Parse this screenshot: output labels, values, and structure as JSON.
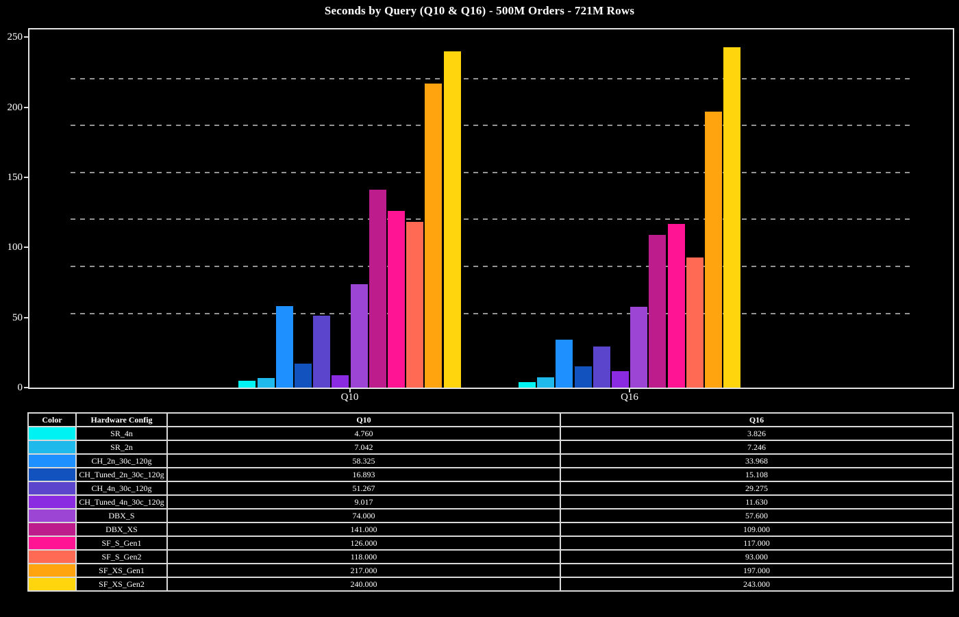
{
  "chart_data": {
    "type": "bar",
    "title": "Seconds by Query (Q10 & Q16) - 500M Orders - 721M Rows",
    "categories": [
      "Q10",
      "Q16"
    ],
    "series": [
      {
        "name": "SR_4n",
        "color": "#00F2F2",
        "values": [
          4.76,
          3.826
        ]
      },
      {
        "name": "SR_2n",
        "color": "#1FB9EC",
        "values": [
          7.042,
          7.246
        ]
      },
      {
        "name": "CH_2n_30c_120g",
        "color": "#1E90FF",
        "values": [
          58.325,
          33.968
        ]
      },
      {
        "name": "CH_Tuned_2n_30c_120g",
        "color": "#1152BE",
        "values": [
          16.893,
          15.108
        ]
      },
      {
        "name": "CH_4n_30c_120g",
        "color": "#5A45CC",
        "values": [
          51.267,
          29.275
        ]
      },
      {
        "name": "CH_Tuned_4n_30c_120g",
        "color": "#8A2BE2",
        "values": [
          9.017,
          11.63
        ]
      },
      {
        "name": "DBX_S",
        "color": "#9C45D4",
        "values": [
          74.0,
          57.6
        ]
      },
      {
        "name": "DBX_XS",
        "color": "#BC1C8C",
        "values": [
          141.0,
          109.0
        ]
      },
      {
        "name": "SF_S_Gen1",
        "color": "#FF1493",
        "values": [
          126.0,
          117.0
        ]
      },
      {
        "name": "SF_S_Gen2",
        "color": "#FF6A55",
        "values": [
          118.0,
          93.0
        ]
      },
      {
        "name": "SF_XS_Gen1",
        "color": "#FFA30F",
        "values": [
          217.0,
          197.0
        ]
      },
      {
        "name": "SF_XS_Gen2",
        "color": "#FFD60E",
        "values": [
          240.0,
          243.0
        ]
      }
    ],
    "xlabel": "",
    "ylabel": "",
    "ylim": [
      0,
      255.5
    ],
    "yticks": [
      0,
      50,
      100,
      150,
      200,
      250
    ],
    "minor_gridlines": [
      53,
      86.5,
      120,
      153.5,
      187,
      220.5
    ],
    "grid": "dashed-horizontal",
    "legend_position": "table-below-chart"
  },
  "table": {
    "headers": [
      "Color",
      "Hardware Config",
      "Q10",
      "Q16"
    ],
    "rows": [
      {
        "config": "SR_4n",
        "q10": "4.760",
        "q16": "3.826"
      },
      {
        "config": "SR_2n",
        "q10": "7.042",
        "q16": "7.246"
      },
      {
        "config": "CH_2n_30c_120g",
        "q10": "58.325",
        "q16": "33.968"
      },
      {
        "config": "CH_Tuned_2n_30c_120g",
        "q10": "16.893",
        "q16": "15.108"
      },
      {
        "config": "CH_4n_30c_120g",
        "q10": "51.267",
        "q16": "29.275"
      },
      {
        "config": "CH_Tuned_4n_30c_120g",
        "q10": "9.017",
        "q16": "11.630"
      },
      {
        "config": "DBX_S",
        "q10": "74.000",
        "q16": "57.600"
      },
      {
        "config": "DBX_XS",
        "q10": "141.000",
        "q16": "109.000"
      },
      {
        "config": "SF_S_Gen1",
        "q10": "126.000",
        "q16": "117.000"
      },
      {
        "config": "SF_S_Gen2",
        "q10": "118.000",
        "q16": "93.000"
      },
      {
        "config": "SF_XS_Gen1",
        "q10": "217.000",
        "q16": "197.000"
      },
      {
        "config": "SF_XS_Gen2",
        "q10": "240.000",
        "q16": "243.000"
      }
    ]
  }
}
